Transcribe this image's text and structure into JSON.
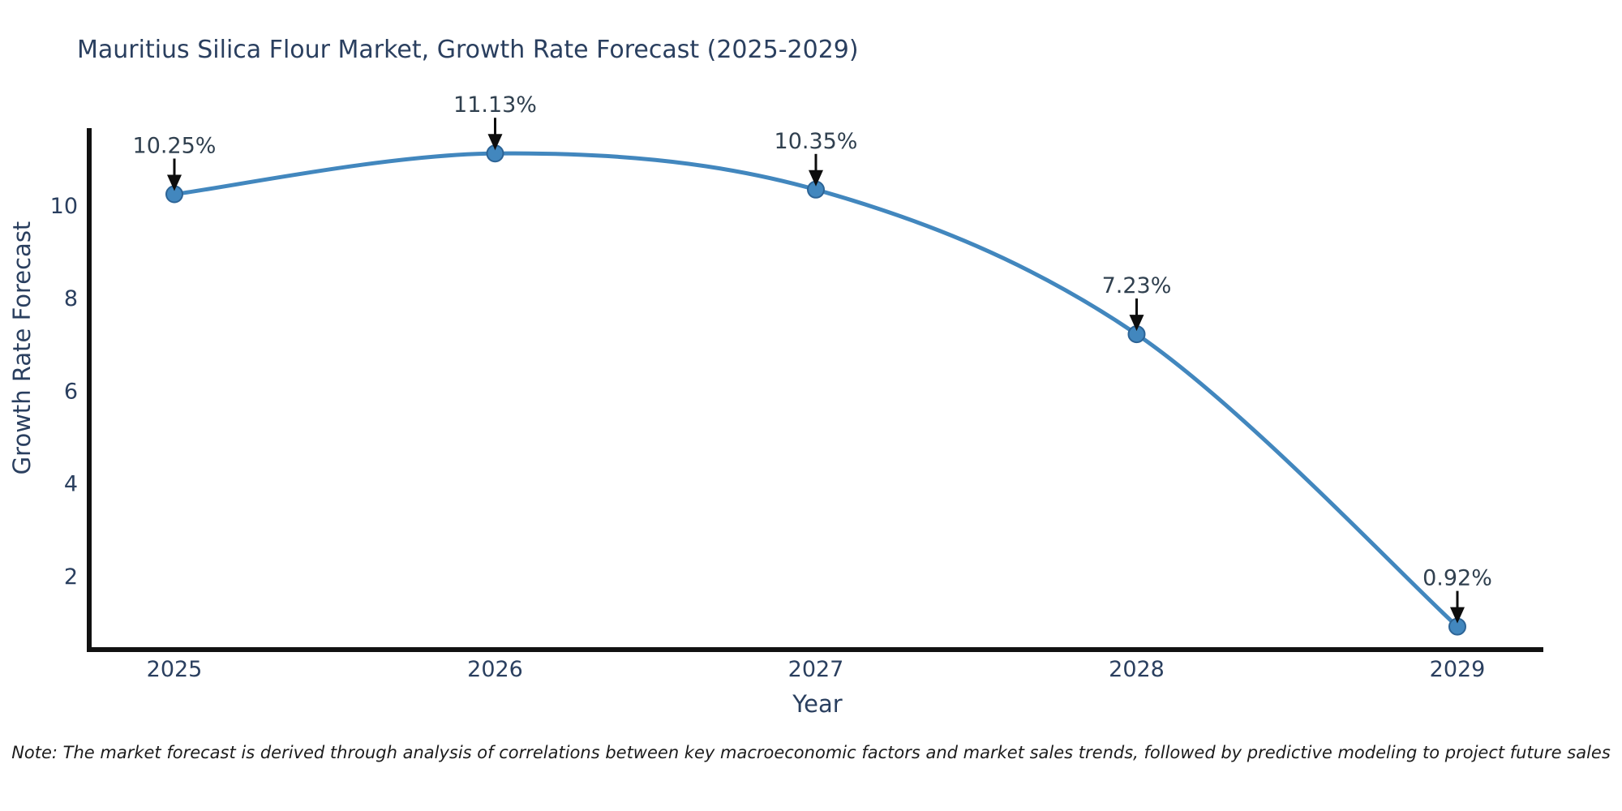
{
  "note": "Note: The market forecast is derived through analysis of correlations between key macroeconomic factors and market sales trends, followed by predictive modeling to project future sales",
  "chart_data": {
    "type": "line",
    "title": "Mauritius Silica Flour Market, Growth Rate Forecast (2025-2029)",
    "xlabel": "Year",
    "ylabel": "Growth Rate Forecast",
    "x": [
      2025,
      2026,
      2027,
      2028,
      2029
    ],
    "values": [
      10.25,
      11.13,
      10.35,
      7.23,
      0.92
    ],
    "point_labels": [
      "10.25%",
      "11.13%",
      "10.35%",
      "7.23%",
      "0.92%"
    ],
    "yticks": [
      2,
      4,
      6,
      8,
      10
    ],
    "ylim": [
      0.45,
      11.7
    ],
    "line_shape": "spline",
    "grid": false,
    "legend_position": "none",
    "annotation_arrows": "black-down-arrows",
    "colors": {
      "line": "#4287be",
      "marker_fill": "#4287be",
      "marker_edge": "#2d6496",
      "axis_line": "#111111",
      "chart_text": "#2a3f5f",
      "annotation_text": "#30404f",
      "arrow": "#0d0d0d",
      "background": "#ffffff"
    }
  }
}
